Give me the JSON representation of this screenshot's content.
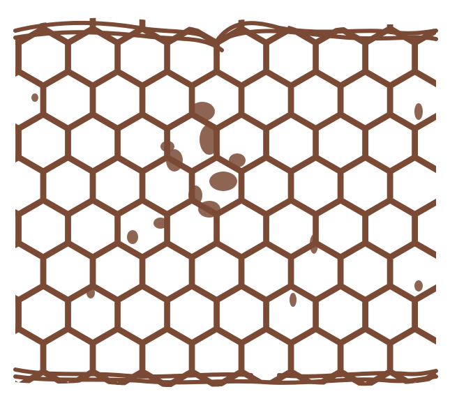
{
  "image": {
    "subject": "honeycomb-lattice",
    "colors": {
      "background": "#ffffff",
      "wall": "#7a4a35"
    }
  }
}
